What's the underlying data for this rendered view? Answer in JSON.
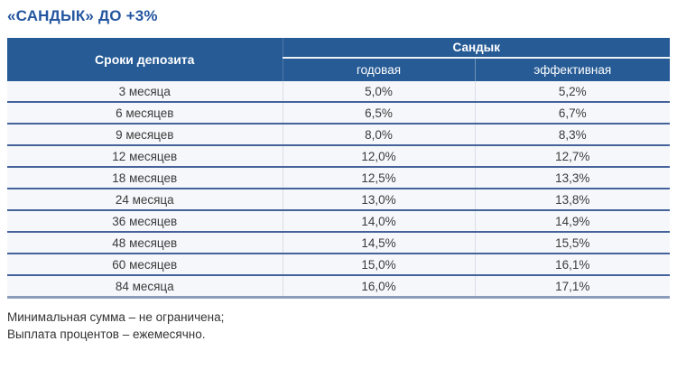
{
  "page": {
    "title": "«САНДЫК» ДО +3%"
  },
  "table": {
    "term_header": "Сроки депозита",
    "group_header": "Сандык",
    "sub_headers": [
      "годовая",
      "эффективная"
    ],
    "rows": [
      {
        "term": "3 месяца",
        "annual": "5,0%",
        "effective": "5,2%"
      },
      {
        "term": "6 месяцев",
        "annual": "6,5%",
        "effective": "6,7%"
      },
      {
        "term": "9 месяцев",
        "annual": "8,0%",
        "effective": "8,3%"
      },
      {
        "term": "12 месяцев",
        "annual": "12,0%",
        "effective": "12,7%"
      },
      {
        "term": "18 месяцев",
        "annual": "12,5%",
        "effective": "13,3%"
      },
      {
        "term": "24 месяца",
        "annual": "13,0%",
        "effective": "13,8%"
      },
      {
        "term": "36 месяцев",
        "annual": "14,0%",
        "effective": "14,9%"
      },
      {
        "term": "48 месяцев",
        "annual": "14,5%",
        "effective": "15,5%"
      },
      {
        "term": "60 месяцев",
        "annual": "15,0%",
        "effective": "16,1%"
      },
      {
        "term": "84 месяца",
        "annual": "16,0%",
        "effective": "17,1%"
      }
    ]
  },
  "footer": {
    "line1": "Минимальная сумма – не ограничена;",
    "line2": "Выплата процентов – ежемесячно."
  },
  "colors": {
    "header_bg": "#265b95",
    "title_text": "#2456a0",
    "row_bg": "#f5f7fa",
    "row_border": "#44639b",
    "table_bottom_border": "#8c9cba"
  }
}
